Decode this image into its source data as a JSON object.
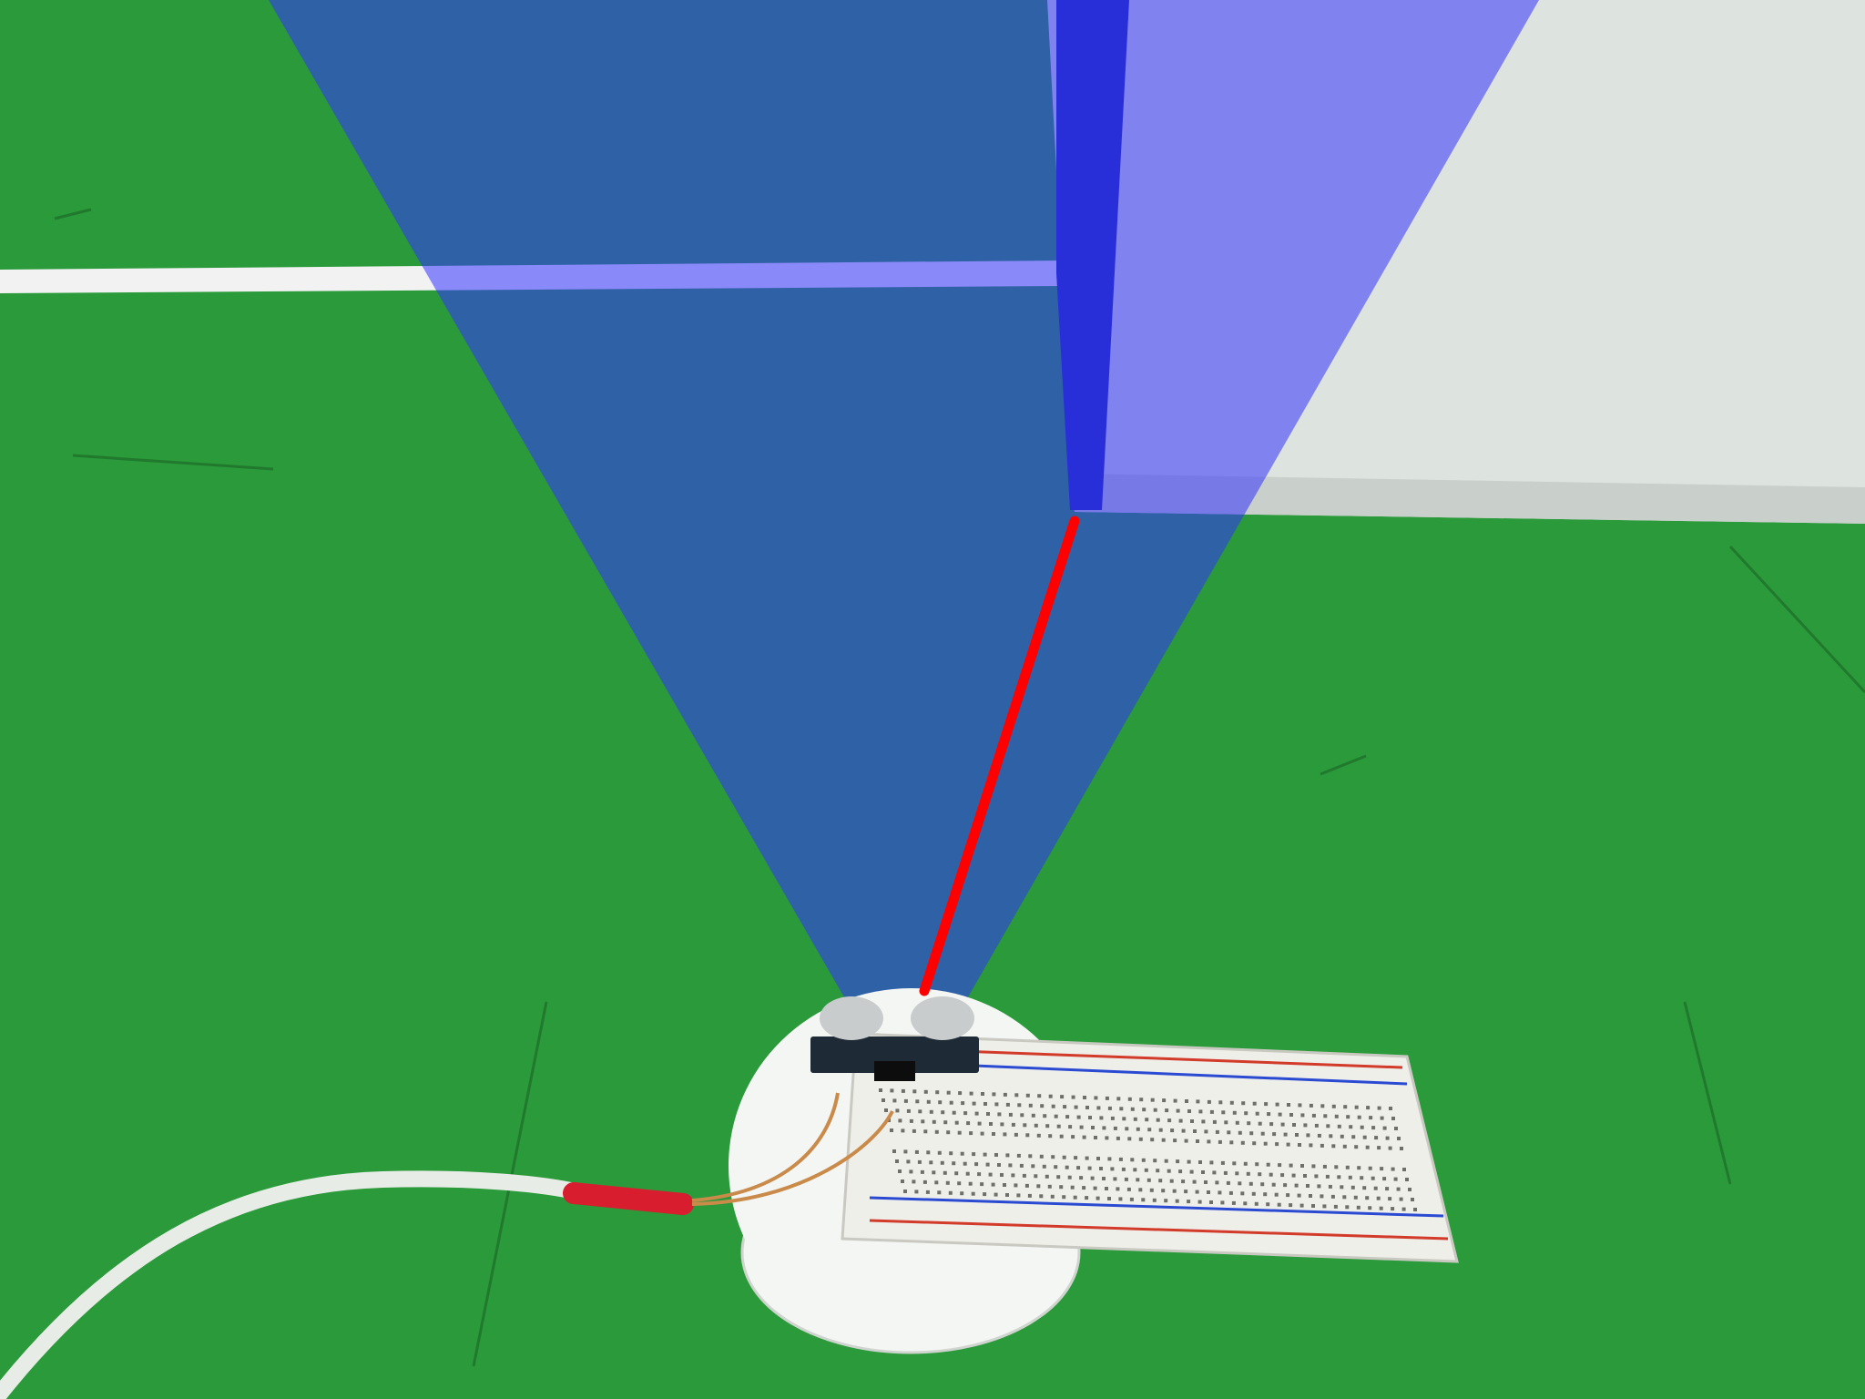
{
  "scene": {
    "description_free": true
  },
  "colors": {
    "floor_green": "#2a9a3a",
    "floor_green_dark": "#1f8a30",
    "court_line": "#f2f2f2",
    "wall_white": "#dde3de",
    "wall_shadow": "#c9cfca",
    "box_blue": "#1e2aa8",
    "sensor_cone": "#3333ff",
    "cone_opacity": "0.55",
    "measurement_ray": "#ff0000",
    "base_disc": "#f4f6f4",
    "breadboard": "#efefea",
    "breadboard_rail_red": "#d23a2a",
    "breadboard_rail_blue": "#2a4ad2",
    "sensor_pcb": "#1e2a36",
    "transducer_metal": "#c8cccd",
    "cable_white": "#e8ece6",
    "heat_shrink_red": "#d81e2e"
  },
  "icons": {
    "sensor": "ultrasonic-sensor-icon"
  }
}
